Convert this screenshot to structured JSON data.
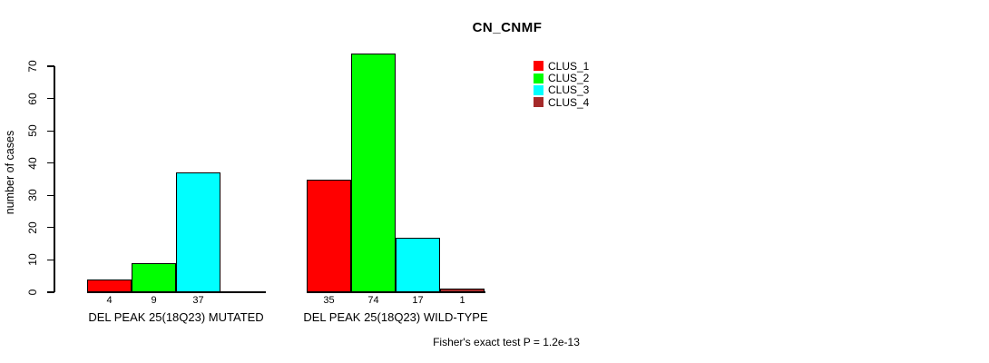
{
  "title": "CN_CNMF",
  "y_axis": {
    "label": "number of cases",
    "ticks": [
      0,
      10,
      20,
      30,
      40,
      50,
      60,
      70
    ]
  },
  "legend": {
    "items": [
      {
        "label": "CLUS_1",
        "color": "#ff0000"
      },
      {
        "label": "CLUS_2",
        "color": "#00ff00"
      },
      {
        "label": "CLUS_3",
        "color": "#00ffff"
      },
      {
        "label": "CLUS_4",
        "color": "#a52a2a"
      }
    ]
  },
  "footer": {
    "stat_text": "Fisher's exact test P = 1.2e-13"
  },
  "chart_data": {
    "type": "bar",
    "title": "CN_CNMF",
    "ylabel": "number of cases",
    "ylim": [
      0,
      70
    ],
    "yticks": [
      0,
      10,
      20,
      30,
      40,
      50,
      60,
      70
    ],
    "grid": false,
    "legend_position": "top-right",
    "series": [
      "CLUS_1",
      "CLUS_2",
      "CLUS_3",
      "CLUS_4"
    ],
    "series_colors": [
      "#ff0000",
      "#00ff00",
      "#00ffff",
      "#a52a2a"
    ],
    "groups": [
      {
        "label": "DEL PEAK 25(18Q23) MUTATED",
        "values": [
          4,
          9,
          37,
          0
        ],
        "value_labels": [
          "4",
          "9",
          "37",
          ""
        ]
      },
      {
        "label": "DEL PEAK 25(18Q23) WILD-TYPE",
        "values": [
          35,
          74,
          17,
          1
        ],
        "value_labels": [
          "35",
          "74",
          "17",
          "1"
        ]
      }
    ],
    "annotation": "Fisher's exact test P = 1.2e-13"
  }
}
